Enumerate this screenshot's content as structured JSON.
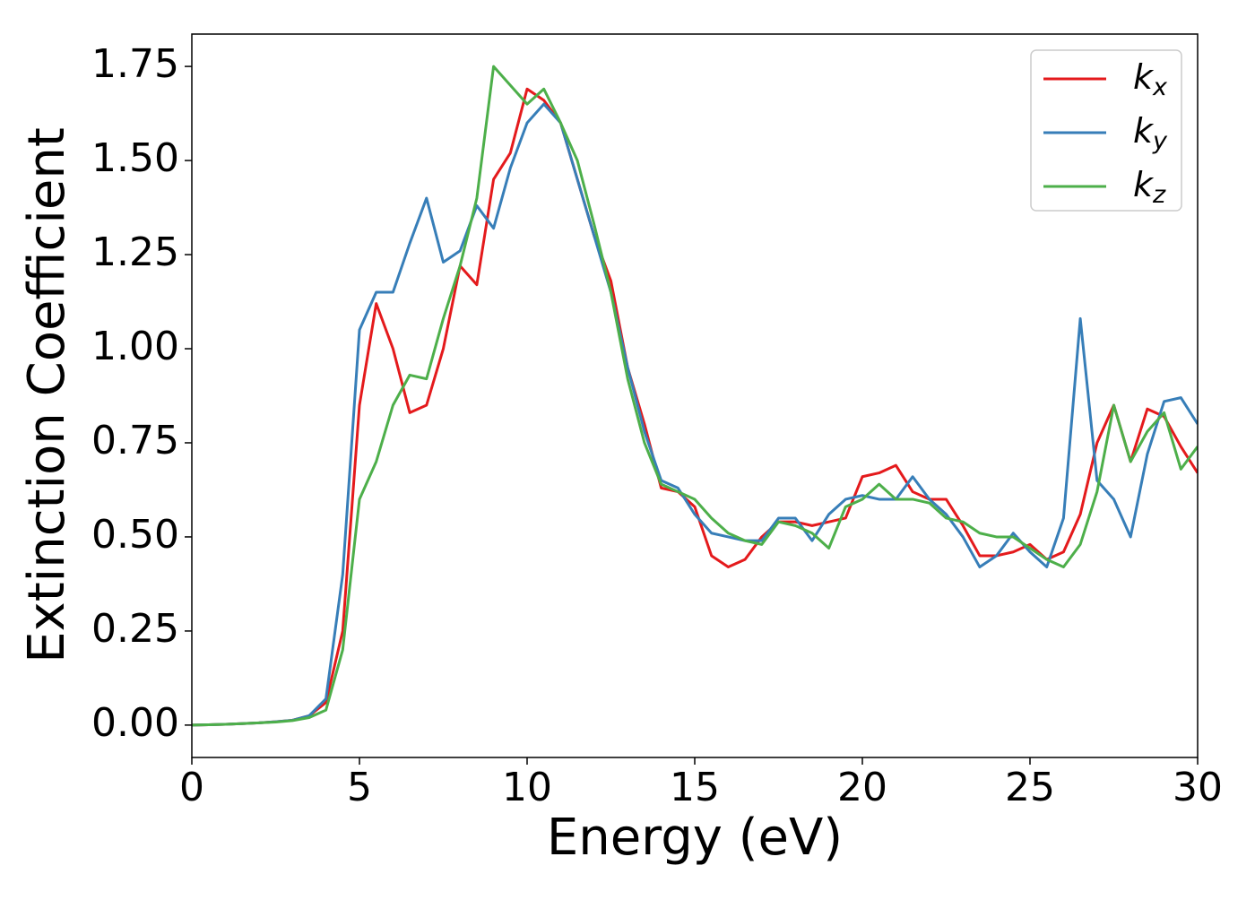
{
  "chart_data": {
    "type": "line",
    "xlabel": "Energy (eV)",
    "ylabel": "Extinction Coefficient",
    "x": [
      0,
      0.5,
      1,
      1.5,
      2,
      2.5,
      3,
      3.5,
      4,
      4.5,
      5,
      5.5,
      6,
      6.5,
      7,
      7.5,
      8,
      8.5,
      9,
      9.5,
      10,
      10.5,
      11,
      11.5,
      12,
      12.5,
      13,
      13.5,
      14,
      14.5,
      15,
      15.5,
      16,
      16.5,
      17,
      17.5,
      18,
      18.5,
      19,
      19.5,
      20,
      20.5,
      21,
      21.5,
      22,
      22.5,
      23,
      23.5,
      24,
      24.5,
      25,
      25.5,
      26,
      26.5,
      27,
      27.5,
      28,
      28.5,
      29,
      29.5,
      30
    ],
    "series": [
      {
        "name": "kx",
        "color": "#e41a1c",
        "values": [
          0,
          0.001,
          0.002,
          0.004,
          0.006,
          0.009,
          0.013,
          0.025,
          0.06,
          0.25,
          0.85,
          1.12,
          1.0,
          0.83,
          0.85,
          1.0,
          1.22,
          1.17,
          1.45,
          1.52,
          1.69,
          1.66,
          1.6,
          1.45,
          1.3,
          1.18,
          0.95,
          0.8,
          0.63,
          0.62,
          0.58,
          0.45,
          0.42,
          0.44,
          0.5,
          0.54,
          0.54,
          0.53,
          0.54,
          0.55,
          0.66,
          0.67,
          0.69,
          0.62,
          0.6,
          0.6,
          0.53,
          0.45,
          0.45,
          0.46,
          0.48,
          0.44,
          0.46,
          0.56,
          0.75,
          0.85,
          0.7,
          0.84,
          0.82,
          0.74,
          0.67
        ]
      },
      {
        "name": "ky",
        "color": "#377eb8",
        "values": [
          0,
          0.001,
          0.002,
          0.004,
          0.006,
          0.009,
          0.013,
          0.025,
          0.07,
          0.4,
          1.05,
          1.15,
          1.15,
          1.28,
          1.4,
          1.23,
          1.26,
          1.38,
          1.32,
          1.48,
          1.6,
          1.65,
          1.6,
          1.45,
          1.3,
          1.15,
          0.95,
          0.78,
          0.65,
          0.63,
          0.56,
          0.51,
          0.5,
          0.49,
          0.49,
          0.55,
          0.55,
          0.49,
          0.56,
          0.6,
          0.61,
          0.6,
          0.6,
          0.66,
          0.6,
          0.56,
          0.5,
          0.42,
          0.45,
          0.51,
          0.46,
          0.42,
          0.55,
          1.08,
          0.65,
          0.6,
          0.5,
          0.72,
          0.86,
          0.87,
          0.8
        ]
      },
      {
        "name": "kz",
        "color": "#4daf4a",
        "values": [
          0,
          0.001,
          0.002,
          0.004,
          0.006,
          0.008,
          0.012,
          0.02,
          0.04,
          0.2,
          0.6,
          0.7,
          0.85,
          0.93,
          0.92,
          1.08,
          1.22,
          1.4,
          1.75,
          1.7,
          1.65,
          1.69,
          1.6,
          1.5,
          1.33,
          1.15,
          0.92,
          0.75,
          0.64,
          0.62,
          0.6,
          0.55,
          0.51,
          0.49,
          0.48,
          0.54,
          0.53,
          0.51,
          0.47,
          0.58,
          0.6,
          0.64,
          0.6,
          0.6,
          0.59,
          0.55,
          0.54,
          0.51,
          0.5,
          0.5,
          0.47,
          0.44,
          0.42,
          0.48,
          0.62,
          0.85,
          0.7,
          0.78,
          0.83,
          0.68,
          0.74
        ]
      }
    ],
    "xlim": [
      0,
      30
    ],
    "xticks": [
      0,
      5,
      10,
      15,
      20,
      25,
      30
    ],
    "ylim": [
      -0.086,
      1.836
    ],
    "yticks": [
      {
        "value": 0,
        "label": "0.00"
      },
      {
        "value": 0.25,
        "label": "0.25"
      },
      {
        "value": 0.5,
        "label": "0.50"
      },
      {
        "value": 0.75,
        "label": "0.75"
      },
      {
        "value": 1,
        "label": "1.00"
      },
      {
        "value": 1.25,
        "label": "1.25"
      },
      {
        "value": 1.5,
        "label": "1.50"
      },
      {
        "value": 1.75,
        "label": "1.75"
      }
    ],
    "legend": "upper right",
    "grid": false
  }
}
